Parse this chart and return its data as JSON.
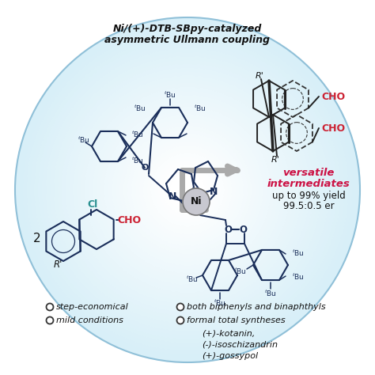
{
  "title_line1": "Ni/(+)-DTB-SBpy-catalyzed",
  "title_line2": "asymmetric Ullmann coupling",
  "bg_outer": "#ffffff",
  "bg_circle_light": "#d8eff8",
  "bg_circle_mid": "#b8ddf0",
  "bg_circle_edge": "#90c0d8",
  "text_color": "#111111",
  "dark_blue": "#1a2e5a",
  "teal_cl": "#2a9090",
  "red_cho": "#cc2233",
  "crimson": "#cc1144",
  "gray_arrow": "#999999",
  "ni_gray": "#c8c8d0",
  "bullet_items_left": [
    "step-economical",
    "mild conditions"
  ],
  "bullet_items_right": [
    "both biphenyls and binaphthyls",
    "formal total syntheses"
  ],
  "synthesis_list": [
    "(+)-kotanin,",
    "(-)-isoschizandrin",
    "(+)-gossypol"
  ],
  "versatile_line1": "versatile",
  "versatile_line2": "intermediates",
  "yield_text": "up to 99% yield",
  "er_text": "99.5:0.5 er",
  "figsize": [
    4.74,
    4.74
  ],
  "dpi": 100
}
